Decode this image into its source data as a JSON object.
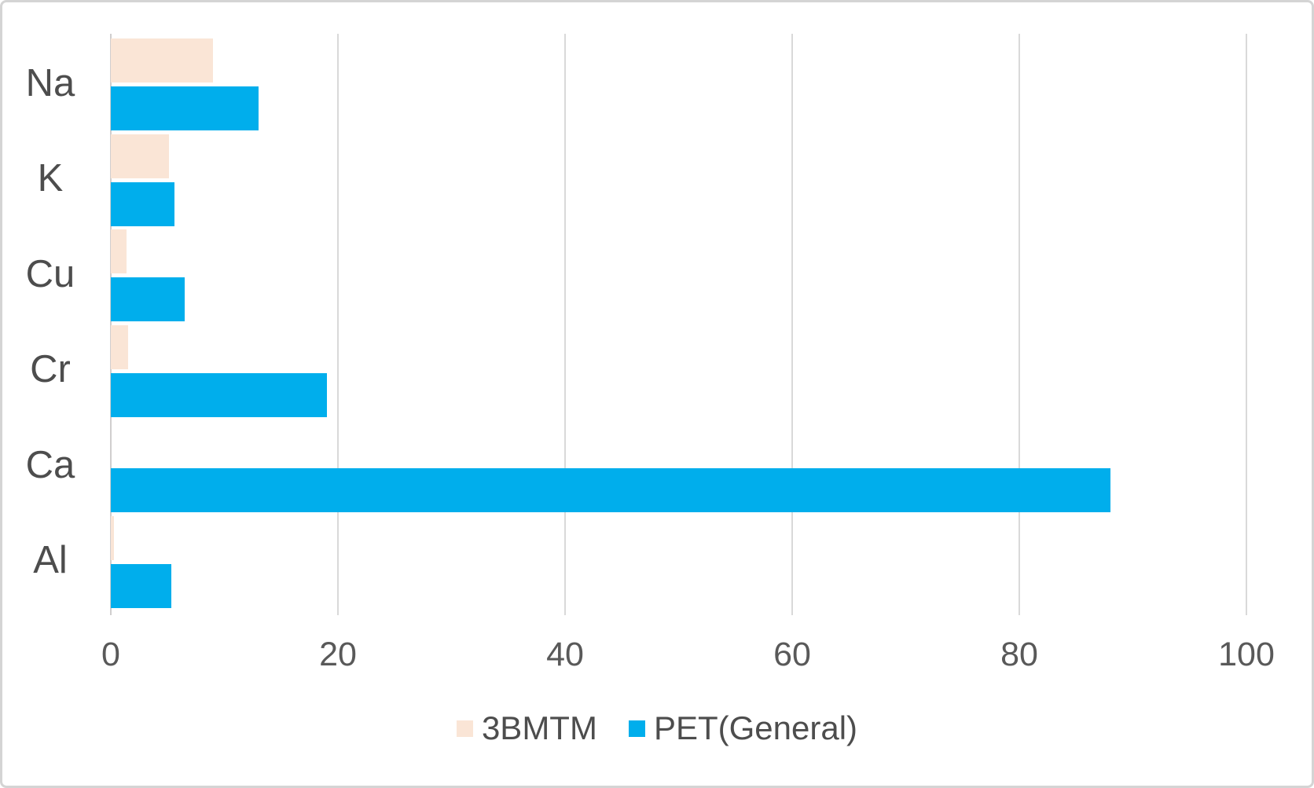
{
  "chart_data": {
    "type": "bar",
    "orientation": "horizontal",
    "categories": [
      "Na",
      "K",
      "Cu",
      "Cr",
      "Ca",
      "Al"
    ],
    "series": [
      {
        "name": "3BMTM",
        "color": "#fae5d6",
        "values": [
          9,
          5.1,
          1.4,
          1.5,
          0,
          0.3
        ]
      },
      {
        "name": "PET(General)",
        "color": "#00aeec",
        "values": [
          13,
          5.6,
          6.5,
          19,
          88,
          5.3
        ]
      }
    ],
    "xlim": [
      0,
      100
    ],
    "xticks": [
      0,
      20,
      40,
      60,
      80,
      100
    ],
    "xlabel": "",
    "ylabel": "",
    "grid": "vertical-only",
    "legend_position": "bottom-center"
  },
  "colors": {
    "gridline": "#d9d9d9",
    "axis_line": "#d0cece",
    "tick_text": "#595959",
    "category_text": "#4d4d4d",
    "frame_border": "#d4d4d4",
    "background": "#ffffff"
  }
}
